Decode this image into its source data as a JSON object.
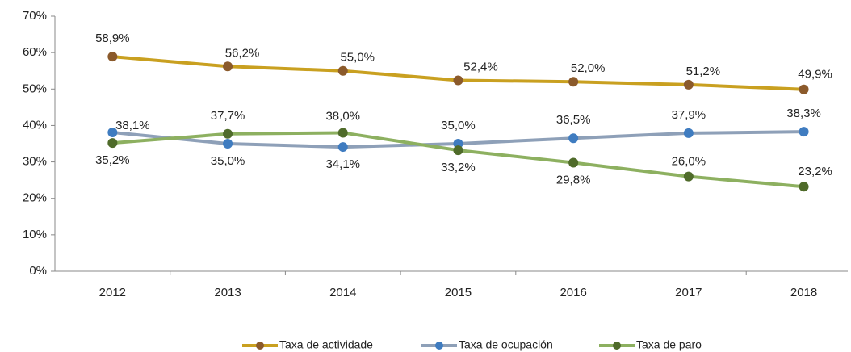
{
  "chart_data": {
    "type": "line",
    "categories": [
      "2012",
      "2013",
      "2014",
      "2015",
      "2016",
      "2017",
      "2018"
    ],
    "series": [
      {
        "name": "Taxa de actividade",
        "color": "#c9a020",
        "marker_color": "#8b5a2b",
        "values": [
          58.9,
          56.2,
          55.0,
          52.4,
          52.0,
          51.2,
          49.9
        ],
        "value_labels": [
          "58,9%",
          "56,2%",
          "55,0%",
          "52,4%",
          "52,0%",
          "51,2%",
          "49,9%"
        ]
      },
      {
        "name": "Taxa de ocupación",
        "color": "#8ea0b8",
        "marker_color": "#3f7cc0",
        "values": [
          38.1,
          35.0,
          34.1,
          35.0,
          36.5,
          37.9,
          38.3
        ],
        "value_labels": [
          "38,1%",
          "35,0%",
          "34,1%",
          "35,0%",
          "36,5%",
          "37,9%",
          "38,3%"
        ]
      },
      {
        "name": "Taxa de paro",
        "color": "#8db060",
        "marker_color": "#4f6b2a",
        "values": [
          35.2,
          37.7,
          38.0,
          33.2,
          29.8,
          26.0,
          23.2
        ],
        "value_labels": [
          "35,2%",
          "37,7%",
          "38,0%",
          "33,2%",
          "29,8%",
          "26,0%",
          "23,2%"
        ]
      }
    ],
    "ylim": [
      0,
      70
    ],
    "yticks": [
      {
        "value": 0,
        "label": "0%"
      },
      {
        "value": 10,
        "label": "10%"
      },
      {
        "value": 20,
        "label": "20%"
      },
      {
        "value": 30,
        "label": "30%"
      },
      {
        "value": 40,
        "label": "40%"
      },
      {
        "value": 50,
        "label": "50%"
      },
      {
        "value": 60,
        "label": "60%"
      },
      {
        "value": 70,
        "label": "70%"
      }
    ],
    "grid": false,
    "legend": "bottom"
  }
}
